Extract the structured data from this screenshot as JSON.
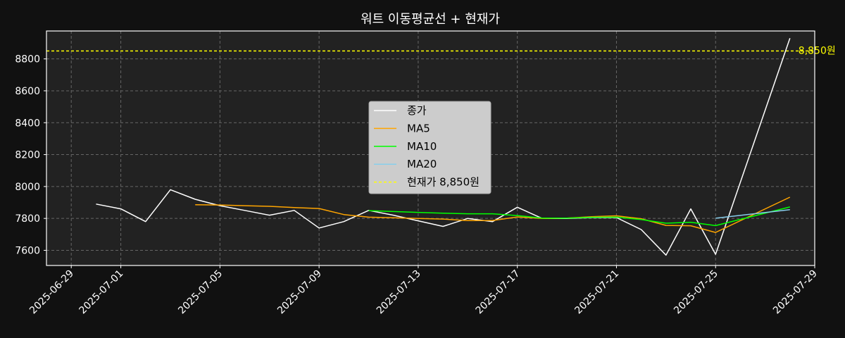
{
  "chart_data": {
    "type": "line",
    "title": "워트 이동평균선 + 현재가",
    "xlabel": "",
    "ylabel": "",
    "x_range": [
      "2025-06-28",
      "2025-07-29"
    ],
    "ylim": [
      7505,
      8975
    ],
    "x_ticks": [
      "2025-06-29",
      "2025-07-01",
      "2025-07-05",
      "2025-07-09",
      "2025-07-13",
      "2025-07-17",
      "2025-07-21",
      "2025-07-25",
      "2025-07-29"
    ],
    "y_ticks": [
      7600,
      7800,
      8000,
      8200,
      8400,
      8600,
      8800
    ],
    "grid": true,
    "legend_position": "center",
    "series": [
      {
        "name": "종가",
        "color": "#ffffff",
        "dash": "",
        "x": [
          "2025-06-30",
          "2025-07-01",
          "2025-07-02",
          "2025-07-03",
          "2025-07-04",
          "2025-07-05",
          "2025-07-06",
          "2025-07-07",
          "2025-07-08",
          "2025-07-09",
          "2025-07-10",
          "2025-07-11",
          "2025-07-12",
          "2025-07-13",
          "2025-07-14",
          "2025-07-15",
          "2025-07-16",
          "2025-07-17",
          "2025-07-18",
          "2025-07-19",
          "2025-07-20",
          "2025-07-21",
          "2025-07-22",
          "2025-07-23",
          "2025-07-24",
          "2025-07-25",
          "2025-07-28"
        ],
        "values": [
          7890,
          7860,
          7780,
          7980,
          7920,
          7880,
          7850,
          7820,
          7850,
          7740,
          7780,
          7850,
          7820,
          7785,
          7750,
          7800,
          7780,
          7870,
          7800,
          7800,
          7805,
          7805,
          7730,
          7570,
          7860,
          7575,
          8930
        ]
      },
      {
        "name": "MA5",
        "color": "#ffa500",
        "dash": "",
        "x": [
          "2025-07-04",
          "2025-07-05",
          "2025-07-06",
          "2025-07-07",
          "2025-07-08",
          "2025-07-09",
          "2025-07-10",
          "2025-07-11",
          "2025-07-12",
          "2025-07-13",
          "2025-07-14",
          "2025-07-15",
          "2025-07-16",
          "2025-07-17",
          "2025-07-18",
          "2025-07-19",
          "2025-07-20",
          "2025-07-21",
          "2025-07-22",
          "2025-07-23",
          "2025-07-24",
          "2025-07-25",
          "2025-07-28"
        ],
        "values": [
          7886,
          7884,
          7880,
          7876,
          7868,
          7862,
          7824,
          7808,
          7804,
          7800,
          7796,
          7786,
          7787,
          7809,
          7800,
          7802,
          7811,
          7816,
          7798,
          7756,
          7754,
          7712,
          7933
        ]
      },
      {
        "name": "MA10",
        "color": "#00ff00",
        "dash": "",
        "x": [
          "2025-07-11",
          "2025-07-12",
          "2025-07-13",
          "2025-07-14",
          "2025-07-15",
          "2025-07-16",
          "2025-07-17",
          "2025-07-18",
          "2025-07-19",
          "2025-07-20",
          "2025-07-21",
          "2025-07-22",
          "2025-07-23",
          "2025-07-24",
          "2025-07-25",
          "2025-07-28"
        ],
        "values": [
          7849,
          7843,
          7838,
          7833,
          7829,
          7829,
          7818,
          7802,
          7802,
          7807,
          7808,
          7793,
          7770,
          7776,
          7755,
          7872
        ]
      },
      {
        "name": "MA20",
        "color": "#87ceeb",
        "dash": "",
        "x": [
          "2025-07-25",
          "2025-07-28"
        ],
        "values": [
          7801,
          7855
        ]
      }
    ],
    "hline": {
      "name": "현재가 8,850원",
      "value": 8850,
      "color": "#ffff00",
      "dash": "4,3",
      "label": "8,850원"
    }
  }
}
